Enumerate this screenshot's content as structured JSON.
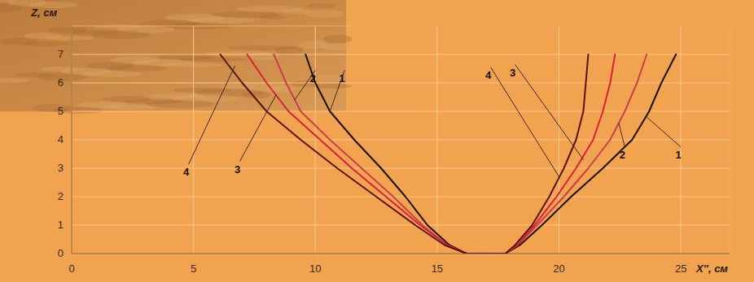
{
  "chart_data": {
    "type": "line",
    "x_label": "X'', см",
    "y_label": "Z, см",
    "xlim": [
      0,
      27
    ],
    "ylim": [
      0,
      8
    ],
    "xticks": [
      0,
      5,
      10,
      15,
      20,
      25
    ],
    "yticks": [
      0,
      1,
      2,
      3,
      4,
      5,
      6,
      7
    ],
    "grid": true,
    "series": [
      {
        "name": "1",
        "color": "#1c0f10",
        "x": [
          9.6,
          10.0,
          10.6,
          11.6,
          12.7,
          13.7,
          14.6,
          15.5,
          16.2,
          17.8,
          18.4,
          19.3,
          20.5,
          21.8,
          23.0,
          23.7,
          24.2,
          24.8
        ],
        "values": [
          7,
          6,
          5,
          4,
          3,
          2,
          1,
          0.3,
          0,
          0,
          0.3,
          1,
          2,
          3,
          4,
          5,
          6,
          7
        ]
      },
      {
        "name": "2",
        "color": "#c8404e",
        "x": [
          8.3,
          8.8,
          9.4,
          10.6,
          11.9,
          13.2,
          14.4,
          15.4,
          16.2,
          17.8,
          18.3,
          19.1,
          20.2,
          21.2,
          22.1,
          22.7,
          23.2,
          23.6
        ],
        "values": [
          7,
          6,
          5,
          4,
          3,
          2,
          1,
          0.3,
          0,
          0,
          0.3,
          1,
          2,
          3,
          4,
          5,
          6,
          7
        ]
      },
      {
        "name": "3",
        "color": "#d81f3c",
        "x": [
          7.2,
          8.0,
          8.9,
          10.2,
          11.5,
          12.9,
          14.3,
          15.4,
          16.2,
          17.8,
          18.3,
          19.0,
          19.9,
          20.7,
          21.4,
          21.8,
          22.1,
          22.3
        ],
        "values": [
          7,
          6,
          5,
          4,
          3,
          2,
          1,
          0.3,
          0,
          0,
          0.3,
          1,
          2,
          3,
          4,
          5,
          6,
          7
        ]
      },
      {
        "name": "4",
        "color": "#5a1212",
        "x": [
          6.1,
          7.0,
          8.0,
          9.4,
          10.9,
          12.5,
          14.1,
          15.3,
          16.2,
          17.8,
          18.2,
          18.9,
          19.6,
          20.2,
          20.7,
          21.0,
          21.1,
          21.2
        ],
        "values": [
          7,
          6,
          5,
          4,
          3,
          2,
          1,
          0.3,
          0,
          0,
          0.3,
          1,
          2,
          3,
          4,
          5,
          6,
          7
        ]
      }
    ],
    "annotations": [
      {
        "text": "4",
        "x": 4.7,
        "y": 2.8,
        "x_end": 6.7,
        "y_end": 6.6
      },
      {
        "text": "3",
        "x": 6.8,
        "y": 2.9,
        "x_end": 8.4,
        "y_end": 5.6
      },
      {
        "text": "2",
        "x": 9.9,
        "y": 6.1,
        "x_end": 9.15,
        "y_end": 5.4
      },
      {
        "text": "1",
        "x": 11.1,
        "y": 6.1,
        "x_end": 10.6,
        "y_end": 5.0
      },
      {
        "text": "4",
        "x": 17.1,
        "y": 6.2,
        "x_end": 20.0,
        "y_end": 2.7
      },
      {
        "text": "3",
        "x": 18.1,
        "y": 6.3,
        "x_end": 21.0,
        "y_end": 3.3
      },
      {
        "text": "2",
        "x": 22.6,
        "y": 3.4,
        "x_end": 22.45,
        "y_end": 4.6
      },
      {
        "text": "1",
        "x": 24.9,
        "y": 3.4,
        "x_end": 23.6,
        "y_end": 4.8
      }
    ]
  }
}
